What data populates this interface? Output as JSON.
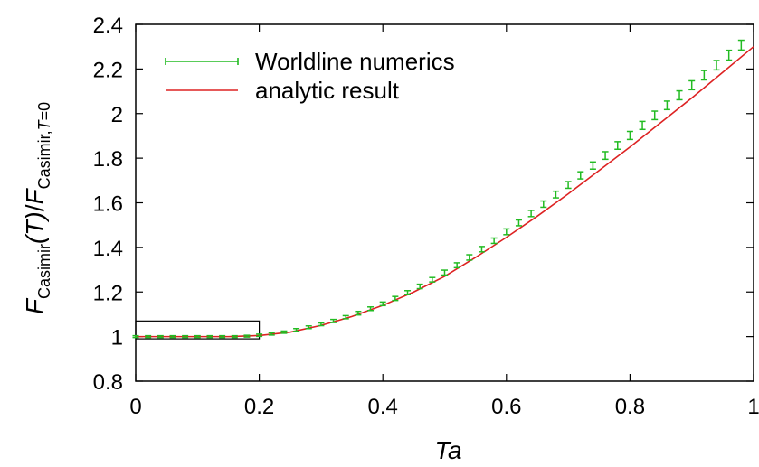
{
  "chart_data": {
    "type": "line",
    "xlabel": "Ta",
    "ylabel": {
      "F": "F",
      "sub1": "Casimir",
      "arg": "(T)",
      "slash": "/",
      "F2": "F",
      "sub2": "Casimir,",
      "sub2_T": "T",
      "sub2_eq": "=0"
    },
    "xlim": [
      0,
      1
    ],
    "ylim": [
      0.8,
      2.4
    ],
    "xticks": [
      0,
      0.2,
      0.4,
      0.6,
      0.8,
      1
    ],
    "xtick_labels": [
      "0",
      "0.2",
      "0.4",
      "0.6",
      "0.8",
      "1"
    ],
    "yticks": [
      0.8,
      1,
      1.2,
      1.4,
      1.6,
      1.8,
      2,
      2.2,
      2.4
    ],
    "ytick_labels": [
      "0.8",
      "1",
      "1.2",
      "1.4",
      "1.6",
      "1.8",
      "2",
      "2.2",
      "2.4"
    ],
    "grid": false,
    "legend_position": "top-left",
    "inset_box": {
      "x": [
        0,
        0.2
      ],
      "y": [
        0.99,
        1.07
      ]
    },
    "series": [
      {
        "name": "Worldline numerics",
        "style": "errorbars",
        "color": "#22bb22",
        "x": [
          0.0,
          0.02,
          0.04,
          0.06,
          0.08,
          0.1,
          0.12,
          0.14,
          0.16,
          0.18,
          0.2,
          0.22,
          0.24,
          0.26,
          0.28,
          0.3,
          0.32,
          0.34,
          0.36,
          0.38,
          0.4,
          0.42,
          0.44,
          0.46,
          0.48,
          0.5,
          0.52,
          0.54,
          0.56,
          0.58,
          0.6,
          0.62,
          0.64,
          0.66,
          0.68,
          0.7,
          0.72,
          0.74,
          0.76,
          0.78,
          0.8,
          0.82,
          0.84,
          0.86,
          0.88,
          0.9,
          0.92,
          0.94,
          0.96,
          0.98
        ],
        "y": [
          1.0,
          1.0,
          1.0,
          1.0,
          1.0,
          1.0,
          1.0,
          1.0,
          1.0,
          1.002,
          1.006,
          1.012,
          1.02,
          1.03,
          1.042,
          1.055,
          1.07,
          1.087,
          1.105,
          1.125,
          1.147,
          1.171,
          1.197,
          1.225,
          1.255,
          1.287,
          1.32,
          1.355,
          1.392,
          1.43,
          1.47,
          1.51,
          1.552,
          1.594,
          1.637,
          1.68,
          1.723,
          1.767,
          1.812,
          1.857,
          1.902,
          1.947,
          1.992,
          2.037,
          2.082,
          2.127,
          2.172,
          2.217,
          2.262,
          2.307
        ],
        "err": [
          0.004,
          0.004,
          0.004,
          0.004,
          0.004,
          0.004,
          0.004,
          0.004,
          0.004,
          0.004,
          0.005,
          0.005,
          0.005,
          0.006,
          0.006,
          0.006,
          0.007,
          0.007,
          0.008,
          0.008,
          0.008,
          0.009,
          0.009,
          0.01,
          0.01,
          0.011,
          0.011,
          0.012,
          0.012,
          0.012,
          0.013,
          0.013,
          0.014,
          0.014,
          0.015,
          0.015,
          0.016,
          0.016,
          0.017,
          0.017,
          0.018,
          0.018,
          0.019,
          0.019,
          0.02,
          0.02,
          0.021,
          0.021,
          0.022,
          0.022
        ]
      },
      {
        "name": "analytic result",
        "style": "line",
        "color": "#dd2222",
        "x": [
          0.0,
          0.05,
          0.1,
          0.15,
          0.2,
          0.25,
          0.3,
          0.35,
          0.4,
          0.45,
          0.5,
          0.55,
          0.6,
          0.65,
          0.7,
          0.75,
          0.8,
          0.85,
          0.9,
          0.95,
          1.0
        ],
        "y": [
          1.0,
          1.0,
          1.0,
          1.0,
          1.005,
          1.02,
          1.05,
          1.09,
          1.14,
          1.2,
          1.27,
          1.355,
          1.445,
          1.54,
          1.64,
          1.745,
          1.85,
          1.96,
          2.07,
          2.185,
          2.3
        ]
      }
    ]
  }
}
